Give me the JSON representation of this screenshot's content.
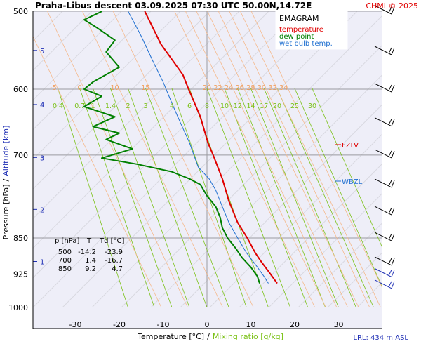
{
  "header": {
    "title": "Praha-Libus   descent   03.09.2025 07:30 UTC   50.00N,14.72E",
    "copyright": "CHMI © 2025"
  },
  "axes": {
    "ylabel_pressure": "Pressure [hPa]",
    "ylabel_sep": "/",
    "ylabel_altitude": "Altitude [km]",
    "xlabel_temp": "Temperature [°C]",
    "xlabel_sep": "/",
    "xlabel_mix": "Mixing ratio [g/kg]",
    "lrl": "LRL: 434 m ASL"
  },
  "legend": {
    "title": "EMAGRAM",
    "items": [
      {
        "label": "temperature",
        "color": "#e00000"
      },
      {
        "label": "dew point",
        "color": "#008000"
      },
      {
        "label": "wet bulb temp.",
        "color": "#1f6fd0"
      }
    ]
  },
  "levels": {
    "fzlv": "FZLV",
    "wbzl": "WBZL"
  },
  "table": {
    "headers": [
      "p [hPa]",
      "T",
      "Td [°C]"
    ],
    "rows": [
      [
        "500",
        "-14.2",
        "-23.9"
      ],
      [
        "700",
        "1.4",
        "-16.7"
      ],
      [
        "850",
        "9.2",
        "4.7"
      ]
    ]
  },
  "chart_data": {
    "type": "line",
    "title": "Praha-Libus   descent   03.09.2025 07:30 UTC   50.00N,14.72E",
    "xlabel": "Temperature [°C]",
    "ylabel": "Pressure [hPa]",
    "xlim": [
      -40,
      40
    ],
    "ylim": [
      1000,
      500
    ],
    "y_scale": "log",
    "grid": true,
    "x_ticks": [
      "-30",
      "-20",
      "-10",
      "0",
      "10",
      "20",
      "30"
    ],
    "pressure_ticks": [
      "500",
      "600",
      "700",
      "850",
      "925",
      "1000"
    ],
    "altitude_ticks": [
      "5",
      "4",
      "3",
      "2",
      "1"
    ],
    "mixing_ratio_labels": [
      "0.4",
      "0.7",
      "1",
      "1.4",
      "2",
      "3",
      "4",
      "6",
      "8",
      "10",
      "12",
      "14",
      "17",
      "20",
      "25",
      "30"
    ],
    "theta_labels": [
      "-5",
      "0",
      "10",
      "15",
      "20",
      "22",
      "24",
      "26",
      "28",
      "30",
      "32",
      "34"
    ],
    "series": [
      {
        "name": "temperature",
        "color": "#e00000",
        "p": [
          500,
          540,
          580,
          600,
          640,
          680,
          700,
          740,
          780,
          820,
          850,
          880,
          900,
          925,
          945
        ],
        "t": [
          -14.2,
          -10.5,
          -5.5,
          -4.2,
          -1.5,
          0.2,
          1.4,
          3.5,
          5.0,
          7.0,
          9.2,
          11.0,
          12.5,
          14.5,
          16.0
        ]
      },
      {
        "name": "dew point",
        "color": "#008000",
        "p": [
          500,
          510,
          520,
          535,
          550,
          570,
          590,
          600,
          610,
          625,
          640,
          655,
          665,
          675,
          690,
          705,
          715,
          728,
          740,
          750,
          770,
          790,
          810,
          830,
          850,
          870,
          890,
          910,
          930,
          945
        ],
        "t": [
          -23.9,
          -28,
          -25,
          -21,
          -23,
          -20,
          -26,
          -28,
          -24,
          -28,
          -21,
          -26,
          -20,
          -23,
          -17,
          -24,
          -16,
          -8,
          -4,
          -1.5,
          0,
          2,
          3,
          3.5,
          4.7,
          6.5,
          8,
          10,
          11.5,
          12
        ]
      },
      {
        "name": "wet bulb temp.",
        "color": "#1f6fd0",
        "p": [
          500,
          530,
          560,
          590,
          620,
          650,
          680,
          700,
          720,
          740,
          760,
          790,
          820,
          850,
          880,
          910,
          930,
          945
        ],
        "t": [
          -18,
          -15,
          -12.5,
          -10,
          -8,
          -6,
          -4,
          -3,
          -2,
          0.5,
          2,
          3.5,
          5,
          7,
          9,
          11.5,
          13,
          14
        ]
      }
    ],
    "wind_barbs_pressure": [
      500,
      550,
      600,
      650,
      700,
      750,
      800,
      850,
      900,
      925,
      950
    ]
  }
}
